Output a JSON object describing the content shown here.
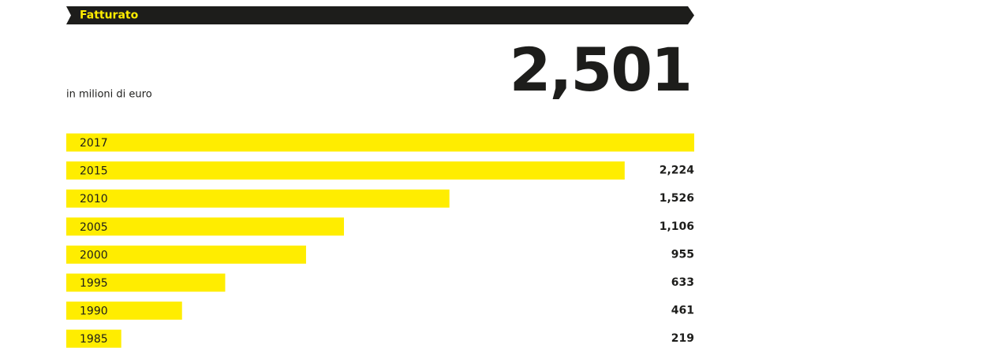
{
  "chart_data": {
    "type": "bar",
    "title": "Fatturato",
    "subtitle": "in milioni di euro",
    "categories": [
      "2017",
      "2015",
      "2010",
      "2005",
      "2000",
      "1995",
      "1990",
      "1985"
    ],
    "values": [
      2501,
      2224,
      1526,
      1106,
      955,
      633,
      461,
      219
    ],
    "value_labels": [
      "2,501",
      "2,224",
      "1,526",
      "1,106",
      "955",
      "633",
      "461",
      "219"
    ],
    "color": "#ffed00"
  }
}
